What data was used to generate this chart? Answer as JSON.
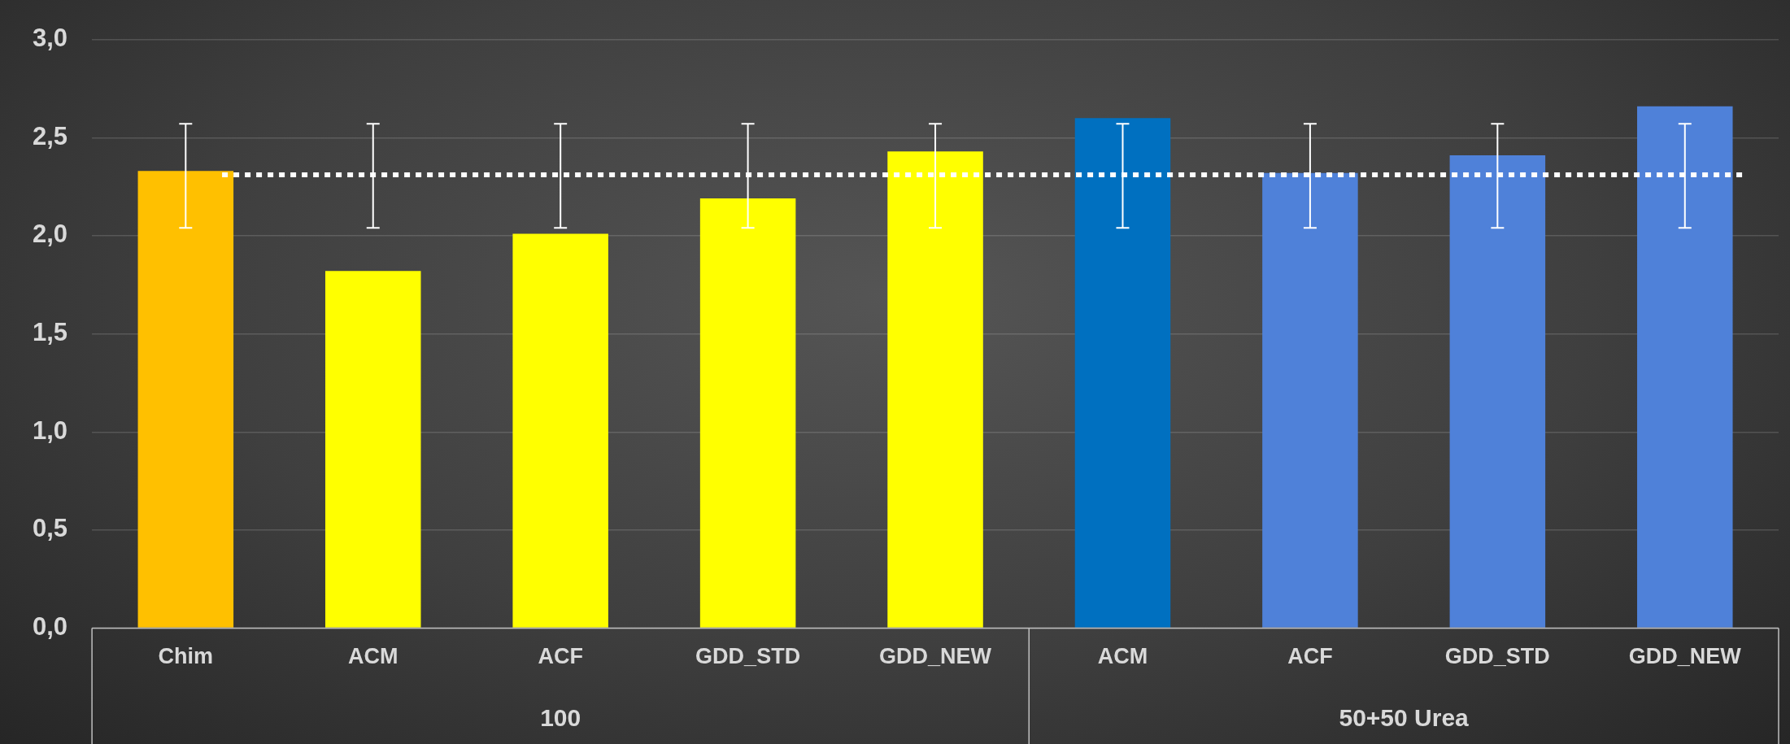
{
  "chart_data": {
    "type": "bar",
    "categories": [
      "Chim",
      "ACM",
      "ACF",
      "GDD_STD",
      "GDD_NEW",
      "ACM",
      "ACF",
      "GDD_STD",
      "GDD_NEW"
    ],
    "series": [
      {
        "colors": [
          "#ffc000",
          "#ffff00",
          "#ffff00",
          "#ffff00",
          "#ffff00",
          null,
          null,
          null,
          null
        ],
        "values": [
          2.33,
          1.82,
          2.01,
          2.19,
          2.43,
          null,
          null,
          null,
          null
        ],
        "errors": [
          [
            2.04,
            2.57
          ],
          [
            2.04,
            2.57
          ],
          [
            2.04,
            2.57
          ],
          [
            2.04,
            2.57
          ],
          [
            2.04,
            2.57
          ],
          null,
          null,
          null,
          null
        ]
      },
      {
        "colors": [
          null,
          null,
          null,
          null,
          null,
          "#0070c0",
          "#4f81d9",
          "#4f81d9",
          "#4f81d9"
        ],
        "values": [
          null,
          null,
          null,
          null,
          null,
          2.6,
          2.32,
          2.41,
          2.66
        ],
        "errors": [
          null,
          null,
          null,
          null,
          null,
          [
            2.04,
            2.57
          ],
          [
            2.04,
            2.57
          ],
          [
            2.04,
            2.57
          ],
          [
            2.04,
            2.57
          ]
        ]
      }
    ],
    "ylim": [
      0,
      3
    ],
    "yticks": [
      {
        "value": 0,
        "label": "0,0"
      },
      {
        "value": 0.5,
        "label": "0,5"
      },
      {
        "value": 1,
        "label": "1,0"
      },
      {
        "value": 1.5,
        "label": "1,5"
      },
      {
        "value": 2,
        "label": "2,0"
      },
      {
        "value": 2.5,
        "label": "2,5"
      },
      {
        "value": 3,
        "label": "3,0"
      }
    ],
    "annotations": [
      "100",
      "50+50 Urea"
    ],
    "grid": "y",
    "legend": false,
    "ref_lines": [
      {
        "axis": "y",
        "value": 2.31,
        "color": "#ffffff",
        "line_style": "dotted"
      }
    ]
  }
}
